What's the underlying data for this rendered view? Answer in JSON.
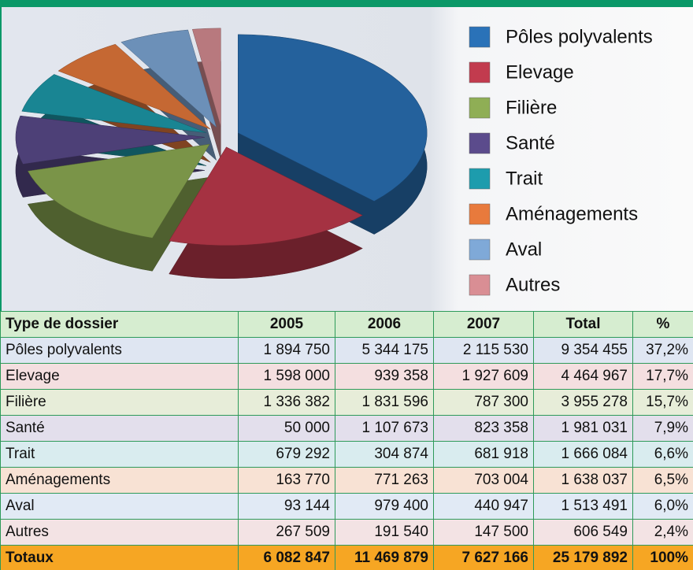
{
  "chart_data": {
    "type": "pie",
    "categories": [
      "Pôles polyvalents",
      "Elevage",
      "Filière",
      "Santé",
      "Trait",
      "Aménagements",
      "Aval",
      "Autres"
    ],
    "values": [
      37.2,
      17.7,
      15.7,
      7.9,
      6.6,
      6.5,
      6.0,
      2.4
    ],
    "colors": [
      "#2a72b8",
      "#c23b4e",
      "#8fae55",
      "#5b4b8c",
      "#1d9cad",
      "#e87a3c",
      "#7fa9d8",
      "#d98e94"
    ]
  },
  "table": {
    "header": [
      "Type de dossier",
      "2005",
      "2006",
      "2007",
      "Total",
      "%"
    ],
    "rows": [
      [
        "Pôles polyvalents",
        "1 894 750",
        "5 344 175",
        "2 115 530",
        "9 354 455",
        "37,2%"
      ],
      [
        "Elevage",
        "1 598 000",
        "939 358",
        "1 927 609",
        "4 464 967",
        "17,7%"
      ],
      [
        "Filière",
        "1 336 382",
        "1 831 596",
        "787 300",
        "3 955 278",
        "15,7%"
      ],
      [
        "Santé",
        "50 000",
        "1 107 673",
        "823 358",
        "1 981 031",
        "7,9%"
      ],
      [
        "Trait",
        "679 292",
        "304 874",
        "681 918",
        "1 666 084",
        "6,6%"
      ],
      [
        "Aménagements",
        "163 770",
        "771 263",
        "703 004",
        "1 638 037",
        "6,5%"
      ],
      [
        "Aval",
        "93 144",
        "979 400",
        "440 947",
        "1 513 491",
        "6,0%"
      ],
      [
        "Autres",
        "267 509",
        "191 540",
        "147 500",
        "606 549",
        "2,4%"
      ]
    ],
    "totals": [
      "Totaux",
      "6 082 847",
      "11 469 879",
      "7 627 166",
      "25 179 892",
      "100%"
    ]
  }
}
